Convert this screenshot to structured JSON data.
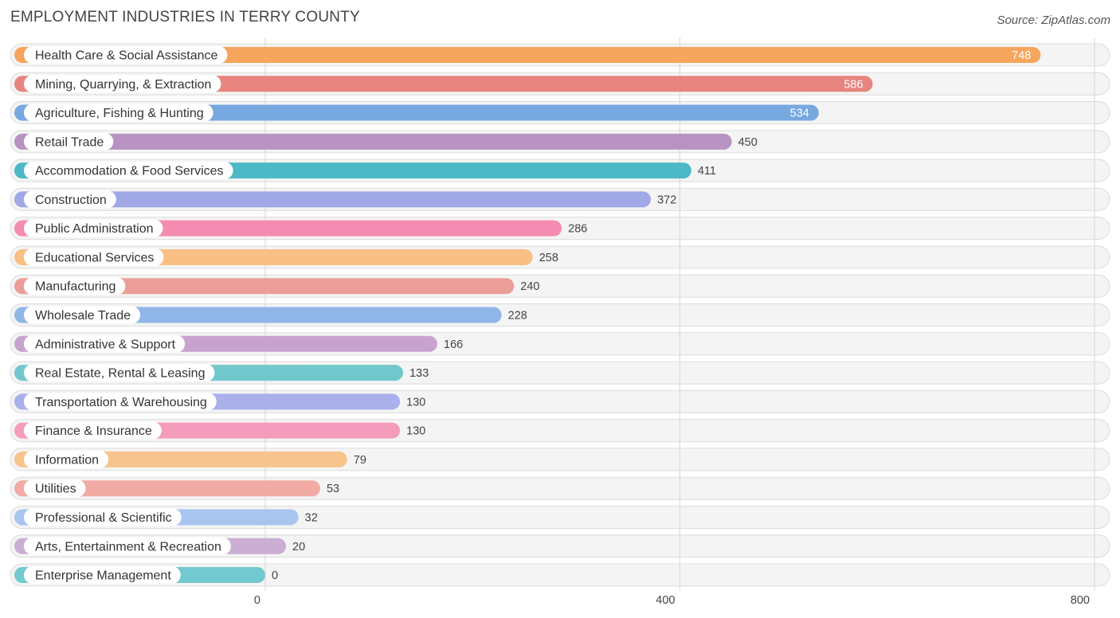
{
  "chart_data": {
    "type": "bar",
    "orientation": "horizontal",
    "title": "EMPLOYMENT INDUSTRIES IN TERRY COUNTY",
    "source": "Source: ZipAtlas.com",
    "categories": [
      "Health Care & Social Assistance",
      "Mining, Quarrying, & Extraction",
      "Agriculture, Fishing & Hunting",
      "Retail Trade",
      "Accommodation & Food Services",
      "Construction",
      "Public Administration",
      "Educational Services",
      "Manufacturing",
      "Wholesale Trade",
      "Administrative & Support",
      "Real Estate, Rental & Leasing",
      "Transportation & Warehousing",
      "Finance & Insurance",
      "Information",
      "Utilities",
      "Professional & Scientific",
      "Arts, Entertainment & Recreation",
      "Enterprise Management"
    ],
    "values": [
      748,
      586,
      534,
      450,
      411,
      372,
      286,
      258,
      240,
      228,
      166,
      133,
      130,
      130,
      79,
      53,
      32,
      20,
      0
    ],
    "colors": [
      "#f6a55c",
      "#e8847e",
      "#77a8e0",
      "#b893c2",
      "#4db8c6",
      "#a0a8e6",
      "#f58bb0",
      "#f9bf84",
      "#eb9e98",
      "#90b6e8",
      "#c9a3cf",
      "#72c7cc",
      "#a9b0ea",
      "#f59cbc",
      "#f8c48e",
      "#f1aaa4",
      "#a7c5ee",
      "#ccaed3",
      "#72c9cf"
    ],
    "xlim": [
      0,
      800
    ],
    "xticks": [
      0,
      400,
      800
    ],
    "xtick_labels": [
      "0",
      "400",
      "800"
    ],
    "grid": true
  }
}
